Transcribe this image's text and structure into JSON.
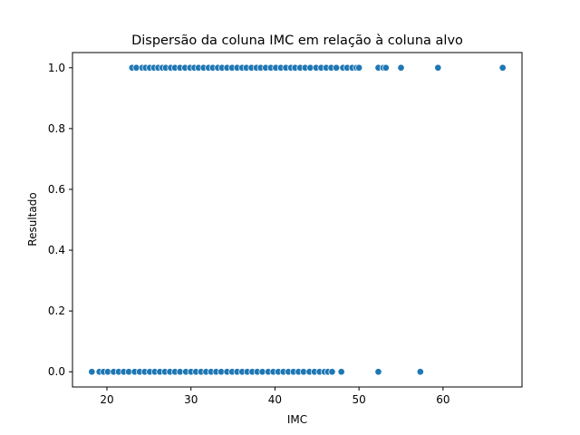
{
  "chart_data": {
    "type": "scatter",
    "title": "Dispersão da coluna IMC em relação à coluna alvo",
    "xlabel": "IMC",
    "ylabel": "Resultado",
    "xlim": [
      15.9,
      69.4
    ],
    "ylim": [
      -0.05,
      1.05
    ],
    "x_ticks": [
      20,
      30,
      40,
      50,
      60
    ],
    "y_ticks": [
      0.0,
      0.2,
      0.4,
      0.6,
      0.8,
      1.0
    ],
    "x_tick_labels": [
      "20",
      "30",
      "40",
      "50",
      "60"
    ],
    "y_tick_labels": [
      "0.0",
      "0.2",
      "0.4",
      "0.6",
      "0.8",
      "1.0"
    ],
    "grid": false,
    "point_color": "#1f77b4",
    "series": [
      {
        "values": [
          {
            "x": 23.0,
            "y": 1
          },
          {
            "x": 23.5,
            "y": 1
          },
          {
            "x": 24.2,
            "y": 1
          },
          {
            "x": 24.6,
            "y": 1
          },
          {
            "x": 25.1,
            "y": 1
          },
          {
            "x": 25.6,
            "y": 1
          },
          {
            "x": 26.1,
            "y": 1
          },
          {
            "x": 26.6,
            "y": 1
          },
          {
            "x": 27.0,
            "y": 1
          },
          {
            "x": 27.6,
            "y": 1
          },
          {
            "x": 28.1,
            "y": 1
          },
          {
            "x": 28.7,
            "y": 1
          },
          {
            "x": 29.3,
            "y": 1
          },
          {
            "x": 29.9,
            "y": 1
          },
          {
            "x": 30.4,
            "y": 1
          },
          {
            "x": 30.9,
            "y": 1
          },
          {
            "x": 31.5,
            "y": 1
          },
          {
            "x": 32.1,
            "y": 1
          },
          {
            "x": 32.6,
            "y": 1
          },
          {
            "x": 33.2,
            "y": 1
          },
          {
            "x": 33.7,
            "y": 1
          },
          {
            "x": 34.3,
            "y": 1
          },
          {
            "x": 34.9,
            "y": 1
          },
          {
            "x": 35.5,
            "y": 1
          },
          {
            "x": 36.1,
            "y": 1
          },
          {
            "x": 36.6,
            "y": 1
          },
          {
            "x": 37.2,
            "y": 1
          },
          {
            "x": 37.8,
            "y": 1
          },
          {
            "x": 38.3,
            "y": 1
          },
          {
            "x": 38.9,
            "y": 1
          },
          {
            "x": 39.5,
            "y": 1
          },
          {
            "x": 40.1,
            "y": 1
          },
          {
            "x": 40.7,
            "y": 1
          },
          {
            "x": 41.3,
            "y": 1
          },
          {
            "x": 41.9,
            "y": 1
          },
          {
            "x": 42.4,
            "y": 1
          },
          {
            "x": 43.0,
            "y": 1
          },
          {
            "x": 43.6,
            "y": 1
          },
          {
            "x": 44.2,
            "y": 1
          },
          {
            "x": 44.9,
            "y": 1
          },
          {
            "x": 45.5,
            "y": 1
          },
          {
            "x": 46.1,
            "y": 1
          },
          {
            "x": 46.7,
            "y": 1
          },
          {
            "x": 47.3,
            "y": 1
          },
          {
            "x": 48.1,
            "y": 1
          },
          {
            "x": 48.6,
            "y": 1
          },
          {
            "x": 49.2,
            "y": 1
          },
          {
            "x": 49.7,
            "y": 1
          },
          {
            "x": 50.0,
            "y": 1
          },
          {
            "x": 52.3,
            "y": 1
          },
          {
            "x": 52.9,
            "y": 1
          },
          {
            "x": 53.2,
            "y": 1
          },
          {
            "x": 55.0,
            "y": 1
          },
          {
            "x": 59.4,
            "y": 1
          },
          {
            "x": 67.1,
            "y": 1
          },
          {
            "x": 18.2,
            "y": 0
          },
          {
            "x": 19.1,
            "y": 0
          },
          {
            "x": 19.6,
            "y": 0
          },
          {
            "x": 20.1,
            "y": 0
          },
          {
            "x": 20.8,
            "y": 0
          },
          {
            "x": 21.4,
            "y": 0
          },
          {
            "x": 22.0,
            "y": 0
          },
          {
            "x": 22.6,
            "y": 0
          },
          {
            "x": 23.3,
            "y": 0
          },
          {
            "x": 23.9,
            "y": 0
          },
          {
            "x": 24.5,
            "y": 0
          },
          {
            "x": 25.1,
            "y": 0
          },
          {
            "x": 25.7,
            "y": 0
          },
          {
            "x": 26.3,
            "y": 0
          },
          {
            "x": 26.9,
            "y": 0
          },
          {
            "x": 27.5,
            "y": 0
          },
          {
            "x": 28.1,
            "y": 0
          },
          {
            "x": 28.7,
            "y": 0
          },
          {
            "x": 29.4,
            "y": 0
          },
          {
            "x": 30.0,
            "y": 0
          },
          {
            "x": 30.6,
            "y": 0
          },
          {
            "x": 31.2,
            "y": 0
          },
          {
            "x": 31.8,
            "y": 0
          },
          {
            "x": 32.4,
            "y": 0
          },
          {
            "x": 33.0,
            "y": 0
          },
          {
            "x": 33.6,
            "y": 0
          },
          {
            "x": 34.3,
            "y": 0
          },
          {
            "x": 34.9,
            "y": 0
          },
          {
            "x": 35.5,
            "y": 0
          },
          {
            "x": 36.1,
            "y": 0
          },
          {
            "x": 36.7,
            "y": 0
          },
          {
            "x": 37.3,
            "y": 0
          },
          {
            "x": 37.9,
            "y": 0
          },
          {
            "x": 38.5,
            "y": 0
          },
          {
            "x": 39.2,
            "y": 0
          },
          {
            "x": 39.8,
            "y": 0
          },
          {
            "x": 40.4,
            "y": 0
          },
          {
            "x": 41.0,
            "y": 0
          },
          {
            "x": 41.6,
            "y": 0
          },
          {
            "x": 42.2,
            "y": 0
          },
          {
            "x": 42.8,
            "y": 0
          },
          {
            "x": 43.4,
            "y": 0
          },
          {
            "x": 44.1,
            "y": 0
          },
          {
            "x": 44.7,
            "y": 0
          },
          {
            "x": 45.3,
            "y": 0
          },
          {
            "x": 45.9,
            "y": 0
          },
          {
            "x": 46.3,
            "y": 0
          },
          {
            "x": 46.8,
            "y": 0
          },
          {
            "x": 47.9,
            "y": 0
          },
          {
            "x": 52.3,
            "y": 0
          },
          {
            "x": 57.3,
            "y": 0
          }
        ]
      }
    ]
  }
}
